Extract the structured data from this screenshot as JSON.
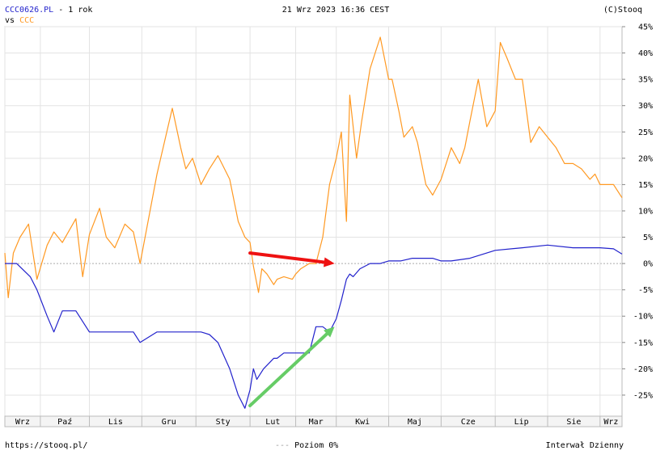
{
  "header": {
    "symbol": "CCC0626.PL",
    "period": " - 1 rok",
    "vs_label": "vs",
    "compare_symbol": "CCC",
    "timestamp": "21 Wrz 2023 16:36 CEST",
    "copyright": "(C)Stooq"
  },
  "footer": {
    "url": "https://stooq.pl/",
    "legend_level": "Poziom 0%",
    "interval": "Interwał Dzienny"
  },
  "colors": {
    "main_series": "#2222cc",
    "compare_series": "#ff9922",
    "symbol_text": "#2222cc",
    "compare_text": "#ff9922",
    "red_arrow": "#ee1111",
    "green_arrow": "#66cc66"
  },
  "chart_data": {
    "type": "line",
    "x_axis": "date",
    "x_range": [
      "2022-09-21",
      "2023-09-21"
    ],
    "ylim": [
      -29,
      45
    ],
    "y_unit": "%",
    "y_ticks": [
      "45%",
      "40%",
      "35%",
      "30%",
      "25%",
      "20%",
      "15%",
      "10%",
      "5%",
      "0%",
      "-5%",
      "-10%",
      "-15%",
      "-20%",
      "-25%"
    ],
    "y_tick_values": [
      45,
      40,
      35,
      30,
      25,
      20,
      15,
      10,
      5,
      0,
      -5,
      -10,
      -15,
      -20,
      -25
    ],
    "x_ticks": [
      "Wrz",
      "Paź",
      "Lis",
      "Gru",
      "Sty",
      "Lut",
      "Mar",
      "Kwi",
      "Maj",
      "Cze",
      "Lip",
      "Sie",
      "Wrz"
    ],
    "x_tick_dates": [
      "2022-09-21",
      "2022-10-12",
      "2022-11-10",
      "2022-12-11",
      "2023-01-12",
      "2023-02-13",
      "2023-03-12",
      "2023-04-05",
      "2023-05-06",
      "2023-06-06",
      "2023-07-08",
      "2023-08-08",
      "2023-09-08"
    ],
    "grid": true,
    "zero_line": 0,
    "series": [
      {
        "name": "CCC0626.PL",
        "color": "#2222cc",
        "x": [
          "2022-09-21",
          "2022-09-28",
          "2022-10-06",
          "2022-10-10",
          "2022-10-16",
          "2022-10-20",
          "2022-10-25",
          "2022-11-02",
          "2022-11-10",
          "2022-11-23",
          "2022-12-06",
          "2022-12-10",
          "2022-12-20",
          "2022-12-29",
          "2023-01-15",
          "2023-01-20",
          "2023-01-25",
          "2023-02-01",
          "2023-02-06",
          "2023-02-10",
          "2023-02-13",
          "2023-02-15",
          "2023-02-17",
          "2023-02-21",
          "2023-02-27",
          "2023-03-01",
          "2023-03-05",
          "2023-03-12",
          "2023-03-20",
          "2023-03-24",
          "2023-03-28",
          "2023-04-01",
          "2023-04-05",
          "2023-04-08",
          "2023-04-11",
          "2023-04-13",
          "2023-04-15",
          "2023-04-19",
          "2023-04-25",
          "2023-05-01",
          "2023-05-06",
          "2023-05-13",
          "2023-05-20",
          "2023-05-28",
          "2023-06-01",
          "2023-06-06",
          "2023-06-12",
          "2023-06-23",
          "2023-07-08",
          "2023-07-24",
          "2023-08-08",
          "2023-08-23",
          "2023-09-08",
          "2023-09-16",
          "2023-09-21"
        ],
        "values": [
          0,
          0,
          -2.5,
          -5,
          -10,
          -13,
          -9,
          -9,
          -13,
          -13,
          -13,
          -15,
          -13,
          -13,
          -13,
          -13.5,
          -15,
          -20,
          -25,
          -27.5,
          -24,
          -20,
          -22,
          -20,
          -18,
          -18,
          -17,
          -17,
          -17,
          -12,
          -12,
          -13,
          -10.5,
          -7,
          -3,
          -2,
          -2.5,
          -1,
          0,
          0,
          0.5,
          0.5,
          1,
          1,
          1,
          0.5,
          0.5,
          1,
          2.5,
          3,
          3.5,
          3,
          3,
          2.8,
          1.8
        ]
      },
      {
        "name": "CCC",
        "color": "#ff9922",
        "x": [
          "2022-09-21",
          "2022-09-23",
          "2022-09-26",
          "2022-09-30",
          "2022-10-05",
          "2022-10-10",
          "2022-10-16",
          "2022-10-20",
          "2022-10-25",
          "2022-11-02",
          "2022-11-06",
          "2022-11-10",
          "2022-11-16",
          "2022-11-20",
          "2022-11-25",
          "2022-12-01",
          "2022-12-06",
          "2022-12-10",
          "2022-12-20",
          "2022-12-29",
          "2023-01-03",
          "2023-01-06",
          "2023-01-10",
          "2023-01-15",
          "2023-01-20",
          "2023-01-25",
          "2023-02-01",
          "2023-02-06",
          "2023-02-10",
          "2023-02-13",
          "2023-02-15",
          "2023-02-18",
          "2023-02-20",
          "2023-02-23",
          "2023-02-27",
          "2023-03-01",
          "2023-03-05",
          "2023-03-10",
          "2023-03-12",
          "2023-03-15",
          "2023-03-20",
          "2023-03-24",
          "2023-03-28",
          "2023-04-01",
          "2023-04-05",
          "2023-04-08",
          "2023-04-11",
          "2023-04-13",
          "2023-04-17",
          "2023-04-20",
          "2023-04-25",
          "2023-05-01",
          "2023-05-06",
          "2023-05-08",
          "2023-05-12",
          "2023-05-15",
          "2023-05-20",
          "2023-05-23",
          "2023-05-28",
          "2023-06-01",
          "2023-06-06",
          "2023-06-12",
          "2023-06-17",
          "2023-06-20",
          "2023-06-23",
          "2023-06-28",
          "2023-07-03",
          "2023-07-08",
          "2023-07-11",
          "2023-07-15",
          "2023-07-20",
          "2023-07-24",
          "2023-07-29",
          "2023-08-03",
          "2023-08-08",
          "2023-08-13",
          "2023-08-18",
          "2023-08-23",
          "2023-08-28",
          "2023-09-02",
          "2023-09-05",
          "2023-09-08",
          "2023-09-12",
          "2023-09-16",
          "2023-09-21"
        ],
        "values": [
          2,
          -6.5,
          2,
          5,
          7.5,
          -3,
          3.5,
          6,
          4,
          8.5,
          -2.5,
          5.5,
          10.5,
          5,
          3,
          7.5,
          6,
          0,
          17,
          29.5,
          22,
          18,
          20,
          15,
          18,
          20.5,
          16,
          8,
          5,
          4,
          -0.5,
          -5.5,
          -1,
          -2,
          -4,
          -3,
          -2.5,
          -3,
          -2,
          -1,
          0,
          0,
          5,
          15,
          20,
          25,
          8,
          32,
          20,
          27,
          37,
          43,
          35,
          35,
          29,
          24,
          26,
          23,
          15,
          13,
          16,
          22,
          19,
          22,
          27,
          35,
          26,
          29,
          42,
          39,
          35,
          35,
          23,
          26,
          24,
          22,
          19,
          19,
          18,
          16,
          17,
          15,
          15,
          15,
          12.5
        ]
      }
    ],
    "annotations": [
      {
        "type": "arrow",
        "color": "#ee1111",
        "from": {
          "x": "2023-02-13",
          "y": 2
        },
        "to": {
          "x": "2023-04-04",
          "y": 0
        }
      },
      {
        "type": "arrow",
        "color": "#66cc66",
        "from": {
          "x": "2023-02-13",
          "y": -27
        },
        "to": {
          "x": "2023-04-04",
          "y": -12
        }
      }
    ]
  }
}
